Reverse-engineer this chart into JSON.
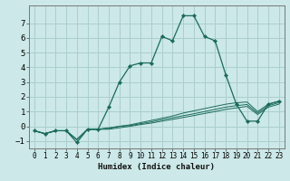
{
  "xlabel": "Humidex (Indice chaleur)",
  "xlim": [
    -0.5,
    23.5
  ],
  "ylim": [
    -1.5,
    8.2
  ],
  "xticks": [
    0,
    1,
    2,
    3,
    4,
    5,
    6,
    7,
    8,
    9,
    10,
    11,
    12,
    13,
    14,
    15,
    16,
    17,
    18,
    19,
    20,
    21,
    22,
    23
  ],
  "yticks": [
    -1,
    0,
    1,
    2,
    3,
    4,
    5,
    6,
    7
  ],
  "bg_color": "#cce8e8",
  "grid_color": "#aacece",
  "line_color": "#1a6b5a",
  "curve1_y": [
    -0.3,
    -0.5,
    -0.3,
    -0.3,
    -1.1,
    -0.2,
    -0.2,
    1.3,
    3.0,
    4.1,
    4.3,
    4.3,
    6.1,
    5.8,
    7.5,
    7.5,
    6.1,
    5.8,
    3.5,
    1.5,
    0.35,
    0.35,
    1.5,
    1.7
  ],
  "curve2_y": [
    -0.3,
    -0.5,
    -0.3,
    -0.3,
    -0.9,
    -0.2,
    -0.2,
    -0.1,
    0.0,
    0.1,
    0.25,
    0.4,
    0.55,
    0.7,
    0.9,
    1.05,
    1.2,
    1.35,
    1.5,
    1.6,
    1.65,
    1.0,
    1.5,
    1.7
  ],
  "curve3_y": [
    -0.3,
    -0.5,
    -0.3,
    -0.3,
    -0.9,
    -0.2,
    -0.2,
    -0.15,
    0.0,
    0.05,
    0.18,
    0.3,
    0.45,
    0.58,
    0.72,
    0.85,
    1.0,
    1.15,
    1.3,
    1.4,
    1.48,
    0.9,
    1.4,
    1.6
  ],
  "curve4_y": [
    -0.3,
    -0.5,
    -0.3,
    -0.3,
    -0.9,
    -0.2,
    -0.2,
    -0.2,
    -0.1,
    0.0,
    0.12,
    0.22,
    0.35,
    0.47,
    0.6,
    0.73,
    0.87,
    1.0,
    1.15,
    1.25,
    1.35,
    0.8,
    1.3,
    1.5
  ]
}
